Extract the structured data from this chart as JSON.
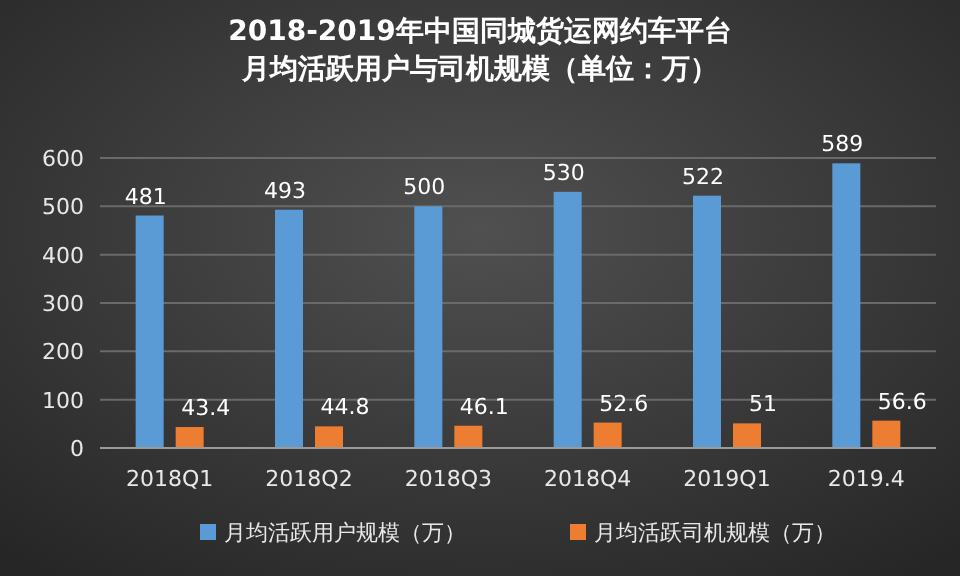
{
  "chart_data": {
    "type": "bar",
    "title": "2018-2019年中国同城货运网约车平台",
    "subtitle": "月均活跃用户与司机规模（单位：万）",
    "categories": [
      "2018Q1",
      "2018Q2",
      "2018Q3",
      "2018Q4",
      "2019Q1",
      "2019.4"
    ],
    "series": [
      {
        "name": "月均活跃用户规模（万）",
        "color": "#5b9bd5",
        "values": [
          481,
          493,
          500,
          530,
          522,
          589
        ]
      },
      {
        "name": "月均活跃司机规模（万）",
        "color": "#ed7d31",
        "values": [
          43.4,
          44.8,
          46.1,
          52.6,
          51,
          56.6
        ]
      }
    ],
    "ylim": [
      0,
      600
    ],
    "yticks": [
      0,
      100,
      200,
      300,
      400,
      500,
      600
    ],
    "grid": "y",
    "legend": "bottom",
    "data_labels": true
  }
}
